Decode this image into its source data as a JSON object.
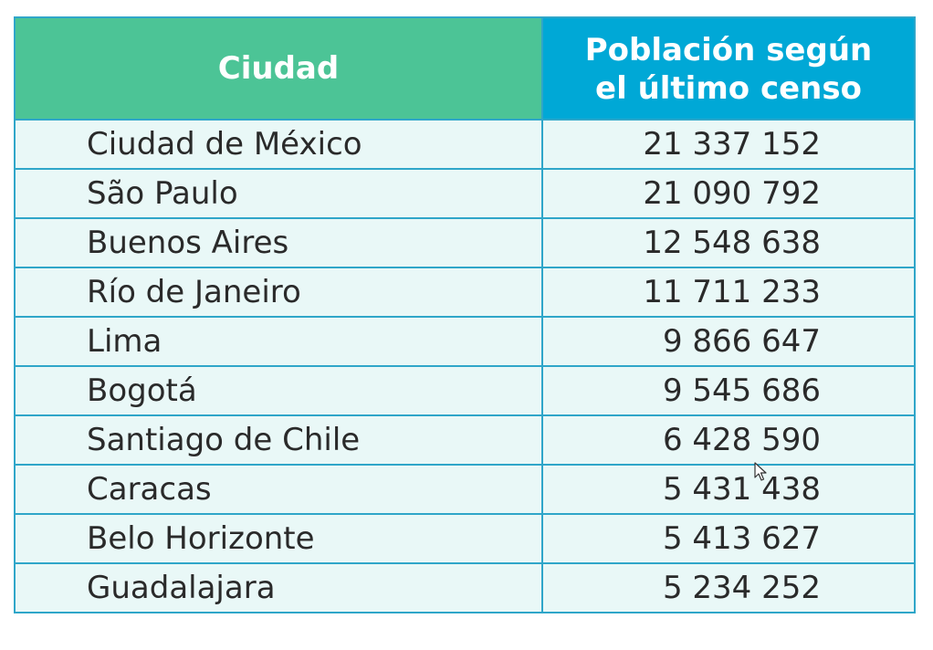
{
  "table": {
    "headers": {
      "city": "Ciudad",
      "population_line1": "Población según",
      "population_line2": "el último censo"
    },
    "rows": [
      {
        "city": "Ciudad de México",
        "population": "21 337 152"
      },
      {
        "city": "São Paulo",
        "population": "21 090 792"
      },
      {
        "city": "Buenos Aires",
        "population": "12 548 638"
      },
      {
        "city": "Río de Janeiro",
        "population": "11 711 233"
      },
      {
        "city": "Lima",
        "population": "9 866 647"
      },
      {
        "city": "Bogotá",
        "population": "9 545 686"
      },
      {
        "city": "Santiago de Chile",
        "population": "6 428 590"
      },
      {
        "city": "Caracas",
        "population": "5 431 438"
      },
      {
        "city": "Belo Horizonte",
        "population": "5 413 627"
      },
      {
        "city": "Guadalajara",
        "population": "5 234 252"
      }
    ]
  },
  "colors": {
    "header_city_bg": "#4cc496",
    "header_population_bg": "#00a8d6",
    "cell_bg": "#e9f8f7",
    "border": "#2fa6c9"
  },
  "icons": {
    "cursor": "mouse-pointer-icon"
  }
}
